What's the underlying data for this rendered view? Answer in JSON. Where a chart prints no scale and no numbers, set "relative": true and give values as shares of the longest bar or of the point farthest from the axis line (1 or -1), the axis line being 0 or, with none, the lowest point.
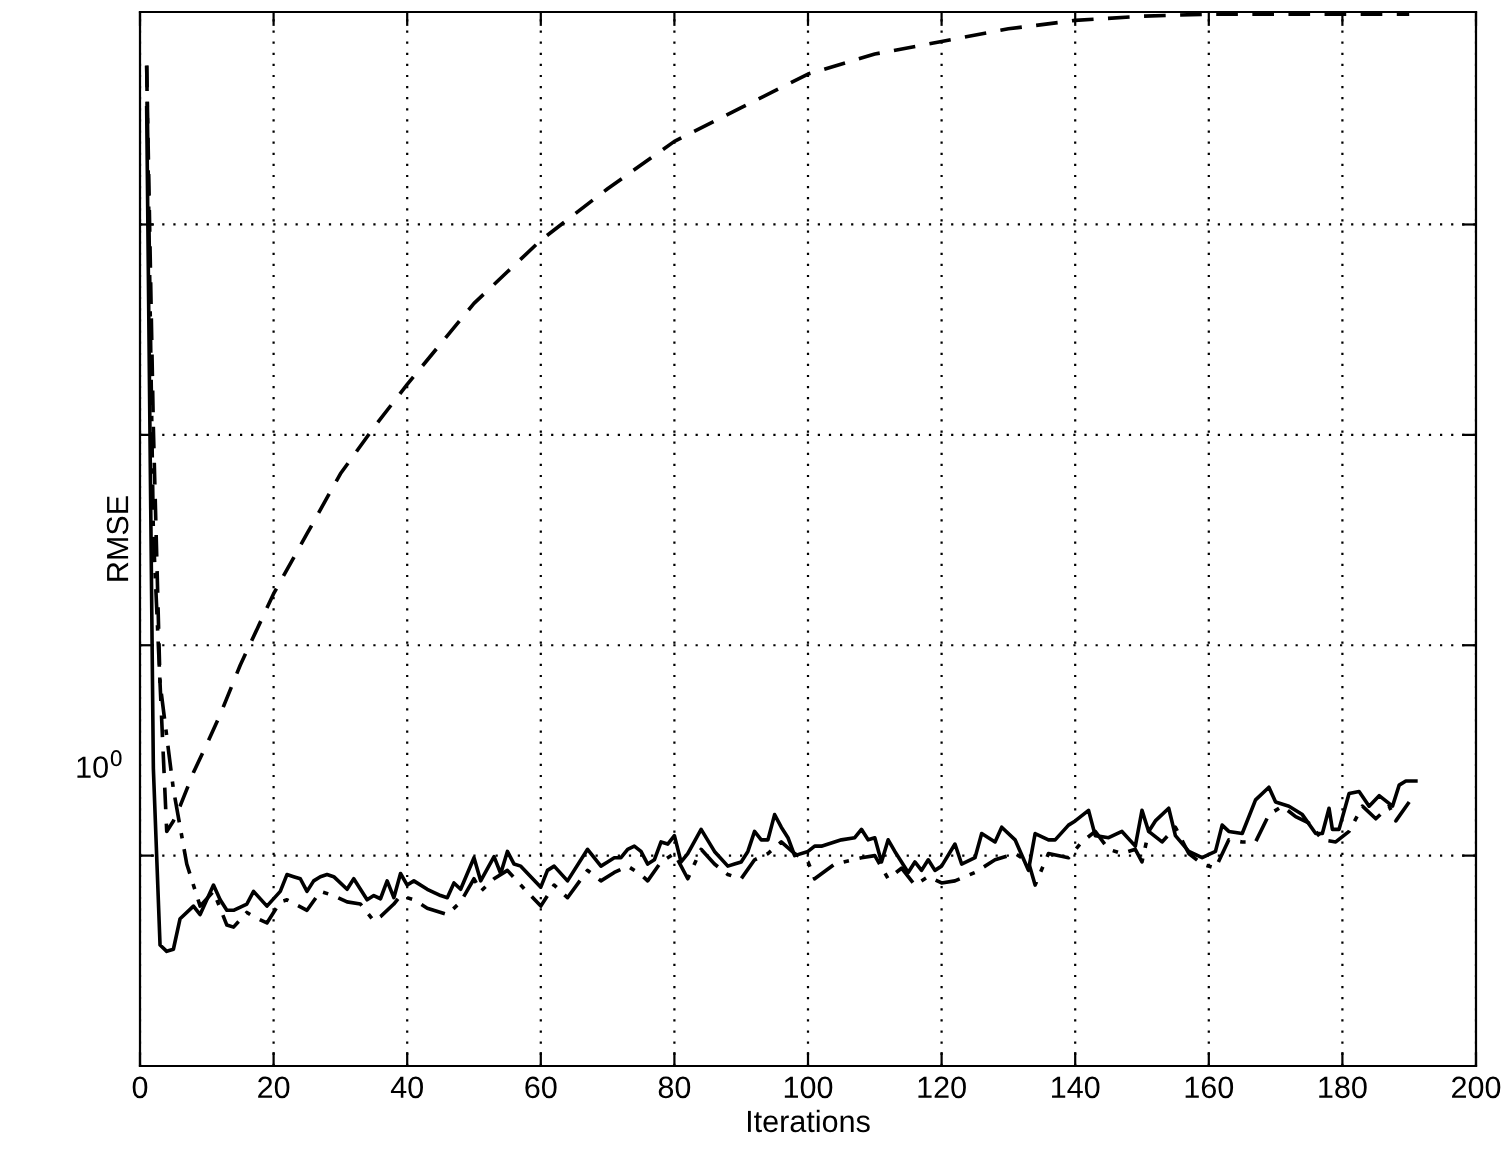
{
  "chart_data": {
    "type": "line",
    "xlabel": "Iterations",
    "ylabel": "RMSE",
    "grid": true,
    "relative": true,
    "annotations": [
      "10$^{0}$"
    ],
    "xlim": [
      0,
      200
    ],
    "xticks": [
      0,
      20,
      40,
      60,
      80,
      100,
      120,
      140,
      160,
      180,
      200
    ],
    "series": [
      {
        "color": "#000000",
        "line_style": "solid",
        "x": [
          1,
          2,
          3,
          4,
          5,
          6,
          8,
          9,
          11,
          12,
          13,
          14,
          16,
          17,
          19,
          21,
          22,
          23,
          24,
          25,
          26,
          27,
          28,
          29,
          31,
          32,
          34,
          35,
          36,
          37,
          38,
          39,
          40,
          41,
          43,
          45,
          46,
          47,
          48,
          50,
          51,
          53,
          54,
          55,
          56,
          57,
          60,
          61,
          62,
          64,
          67,
          69,
          70,
          71,
          72,
          73,
          74,
          75,
          76,
          77,
          78,
          79,
          80,
          81,
          82,
          84,
          86,
          88,
          89,
          90,
          91,
          92,
          93,
          94,
          95,
          96,
          97,
          98,
          100,
          101,
          102,
          105,
          107,
          108,
          109,
          110,
          111,
          112,
          113,
          115,
          116,
          117,
          118,
          119,
          120,
          122,
          123,
          125,
          126,
          128,
          129,
          131,
          133,
          134,
          136,
          137,
          139,
          140,
          142,
          143,
          145,
          147,
          149,
          150,
          151,
          152,
          154,
          155,
          157,
          159,
          161,
          162,
          163,
          165,
          167,
          169,
          170,
          172,
          174,
          176,
          177,
          178,
          178.5,
          179.5,
          181,
          182.5,
          184,
          185.5,
          187.5,
          188.5,
          189.5,
          191
        ],
        "values": [
          0.911,
          0.283,
          0.115,
          0.109,
          0.111,
          0.14,
          0.152,
          0.144,
          0.172,
          0.158,
          0.148,
          0.148,
          0.154,
          0.166,
          0.152,
          0.166,
          0.182,
          0.18,
          0.178,
          0.166,
          0.176,
          0.18,
          0.182,
          0.18,
          0.168,
          0.178,
          0.158,
          0.162,
          0.159,
          0.176,
          0.16,
          0.183,
          0.172,
          0.176,
          0.168,
          0.162,
          0.16,
          0.174,
          0.168,
          0.198,
          0.176,
          0.199,
          0.183,
          0.204,
          0.192,
          0.19,
          0.17,
          0.186,
          0.19,
          0.176,
          0.206,
          0.19,
          0.194,
          0.198,
          0.198,
          0.206,
          0.209,
          0.204,
          0.192,
          0.196,
          0.213,
          0.211,
          0.219,
          0.194,
          0.202,
          0.225,
          0.204,
          0.19,
          0.192,
          0.194,
          0.204,
          0.223,
          0.215,
          0.215,
          0.239,
          0.227,
          0.217,
          0.2,
          0.204,
          0.209,
          0.209,
          0.215,
          0.217,
          0.225,
          0.215,
          0.217,
          0.194,
          0.215,
          0.204,
          0.184,
          0.194,
          0.186,
          0.196,
          0.186,
          0.19,
          0.211,
          0.192,
          0.198,
          0.221,
          0.213,
          0.227,
          0.215,
          0.186,
          0.221,
          0.215,
          0.215,
          0.229,
          0.233,
          0.243,
          0.219,
          0.217,
          0.223,
          0.209,
          0.243,
          0.223,
          0.233,
          0.245,
          0.219,
          0.204,
          0.198,
          0.204,
          0.229,
          0.223,
          0.221,
          0.253,
          0.265,
          0.251,
          0.247,
          0.239,
          0.221,
          0.221,
          0.245,
          0.225,
          0.225,
          0.259,
          0.261,
          0.247,
          0.257,
          0.247,
          0.267,
          0.271,
          0.271
        ]
      },
      {
        "color": "#000000",
        "line_style": "dashed",
        "x": [
          1,
          2,
          3,
          4,
          5,
          6,
          8,
          10,
          12,
          15,
          20,
          25,
          30,
          35,
          40,
          50,
          60,
          70,
          80,
          90,
          100,
          110,
          120,
          130,
          140,
          150,
          160,
          170,
          180,
          190
        ],
        "values": [
          0.951,
          0.607,
          0.364,
          0.223,
          0.233,
          0.247,
          0.279,
          0.306,
          0.334,
          0.381,
          0.449,
          0.506,
          0.563,
          0.607,
          0.648,
          0.725,
          0.785,
          0.834,
          0.879,
          0.911,
          0.943,
          0.962,
          0.974,
          0.986,
          0.994,
          0.998,
          1,
          1,
          1,
          1
        ]
      },
      {
        "color": "#000000",
        "line_style": "dashdot",
        "x": [
          1,
          2,
          3,
          5,
          7,
          9,
          11,
          13,
          14,
          16,
          17,
          19,
          21,
          22,
          25,
          27,
          29,
          31,
          33,
          35,
          36,
          38,
          39,
          41,
          43,
          46,
          48,
          50,
          51,
          53,
          55,
          57,
          60,
          62,
          64,
          67,
          69,
          71,
          73,
          75,
          76,
          78,
          80,
          82,
          84,
          86,
          88,
          90,
          92,
          94,
          96,
          98,
          100,
          101,
          104,
          108,
          110,
          112,
          114,
          116,
          118,
          120,
          122,
          125,
          128,
          131,
          133,
          134,
          136,
          139,
          141,
          143,
          145,
          147,
          149,
          150,
          151,
          153,
          155,
          157,
          159,
          161,
          163,
          165,
          167,
          169,
          171,
          173,
          175,
          177,
          179,
          181,
          183,
          185,
          187,
          188,
          190
        ],
        "values": [
          0.951,
          0.506,
          0.364,
          0.263,
          0.192,
          0.152,
          0.166,
          0.134,
          0.132,
          0.146,
          0.142,
          0.136,
          0.156,
          0.158,
          0.148,
          0.166,
          0.162,
          0.156,
          0.154,
          0.138,
          0.142,
          0.154,
          0.162,
          0.158,
          0.15,
          0.144,
          0.156,
          0.178,
          0.166,
          0.178,
          0.186,
          0.172,
          0.152,
          0.172,
          0.16,
          0.186,
          0.176,
          0.184,
          0.19,
          0.182,
          0.176,
          0.194,
          0.202,
          0.178,
          0.206,
          0.192,
          0.182,
          0.178,
          0.196,
          0.202,
          0.213,
          0.202,
          0.194,
          0.178,
          0.192,
          0.198,
          0.2,
          0.178,
          0.188,
          0.172,
          0.18,
          0.174,
          0.176,
          0.184,
          0.196,
          0.202,
          0.194,
          0.172,
          0.202,
          0.198,
          0.213,
          0.223,
          0.206,
          0.202,
          0.206,
          0.194,
          0.223,
          0.213,
          0.227,
          0.202,
          0.192,
          0.188,
          0.215,
          0.213,
          0.213,
          0.239,
          0.247,
          0.237,
          0.231,
          0.215,
          0.213,
          0.223,
          0.247,
          0.235,
          0.247,
          0.233,
          0.251
        ]
      }
    ]
  }
}
